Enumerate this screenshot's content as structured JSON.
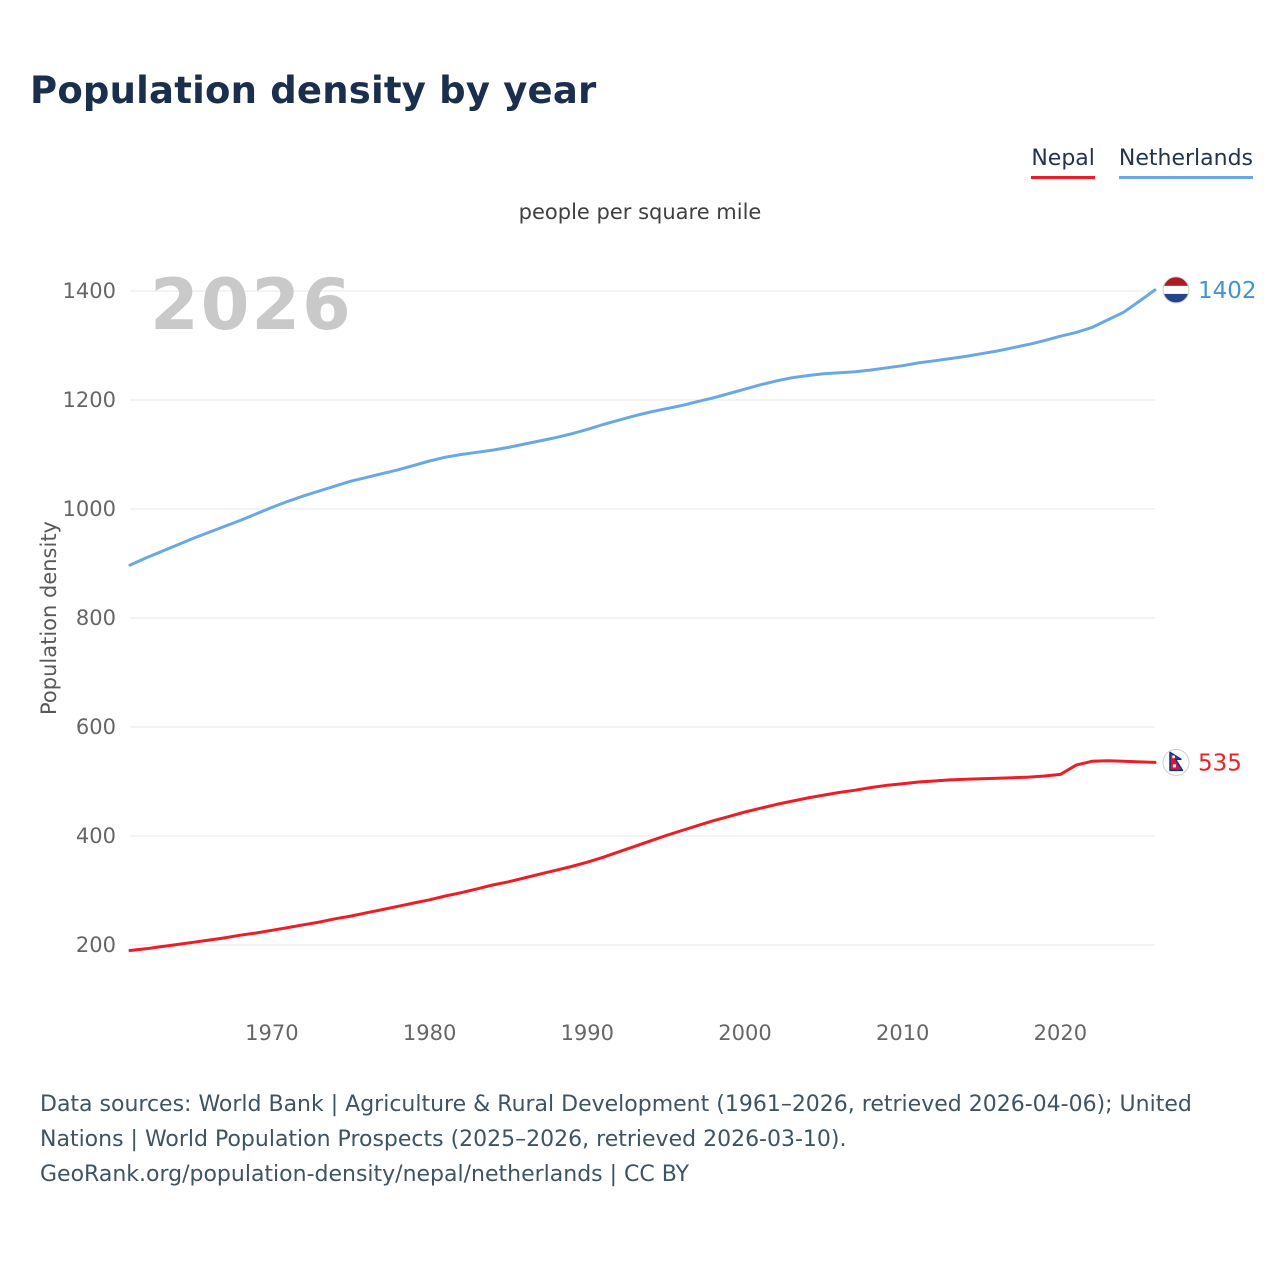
{
  "page": {
    "title": "Population density by year",
    "subtitle": "people per square mile",
    "watermark": "2026",
    "ylabel": "Population density"
  },
  "legend": {
    "items": [
      {
        "label": "Nepal",
        "color": "#ee1c25"
      },
      {
        "label": "Netherlands",
        "color": "#69a8e4"
      }
    ]
  },
  "footer": {
    "lines": [
      "Data sources: World Bank | Agriculture & Rural Development (1961–2026, retrieved 2026-04-06); United",
      "Nations | World Population Prospects (2025–2026, retrieved 2026-03-10).",
      "GeoRank.org/population-density/nepal/netherlands | CC BY"
    ]
  },
  "chart_data": {
    "type": "line",
    "title": "Population density by year",
    "units": "people per square mile",
    "xlabel": "",
    "ylabel": "Population density",
    "xlim": [
      1961,
      2026
    ],
    "xticks": [
      1970,
      1980,
      1990,
      2000,
      2010,
      2020
    ],
    "yticks": [
      200,
      400,
      600,
      800,
      1000,
      1200,
      1400
    ],
    "grid": "horizontal",
    "legend_position": "top-right",
    "x": [
      1961,
      1962,
      1963,
      1964,
      1965,
      1966,
      1967,
      1968,
      1969,
      1970,
      1971,
      1972,
      1973,
      1974,
      1975,
      1976,
      1977,
      1978,
      1979,
      1980,
      1981,
      1982,
      1983,
      1984,
      1985,
      1986,
      1987,
      1988,
      1989,
      1990,
      1991,
      1992,
      1993,
      1994,
      1995,
      1996,
      1997,
      1998,
      1999,
      2000,
      2001,
      2002,
      2003,
      2004,
      2005,
      2006,
      2007,
      2008,
      2009,
      2010,
      2011,
      2012,
      2013,
      2014,
      2015,
      2016,
      2017,
      2018,
      2019,
      2020,
      2021,
      2022,
      2023,
      2024,
      2025,
      2026
    ],
    "series": [
      {
        "name": "Nepal",
        "color": "#ee1c25",
        "label_color": "#e8232b",
        "flag": "nepal",
        "end_value": 535,
        "values": [
          190,
          193,
          197,
          201,
          205,
          209,
          213,
          218,
          222,
          227,
          232,
          237,
          242,
          248,
          253,
          259,
          265,
          271,
          277,
          283,
          290,
          296,
          303,
          310,
          316,
          323,
          330,
          337,
          344,
          352,
          361,
          371,
          381,
          391,
          401,
          410,
          419,
          428,
          436,
          444,
          451,
          458,
          464,
          470,
          475,
          480,
          484,
          489,
          493,
          496,
          499,
          501,
          503,
          504,
          505,
          506,
          507,
          508,
          510,
          513,
          530,
          537,
          538,
          537,
          536,
          535
        ]
      },
      {
        "name": "Netherlands",
        "color": "#69a8e4",
        "label_color": "#4292d6",
        "flag": "netherlands",
        "end_value": 1402,
        "values": [
          897,
          910,
          922,
          934,
          946,
          957,
          968,
          979,
          991,
          1003,
          1014,
          1024,
          1033,
          1042,
          1051,
          1058,
          1065,
          1072,
          1080,
          1088,
          1095,
          1100,
          1104,
          1108,
          1113,
          1119,
          1125,
          1131,
          1138,
          1146,
          1155,
          1163,
          1171,
          1178,
          1184,
          1190,
          1197,
          1204,
          1212,
          1220,
          1228,
          1235,
          1241,
          1245,
          1248,
          1250,
          1252,
          1255,
          1259,
          1263,
          1268,
          1272,
          1276,
          1280,
          1285,
          1290,
          1296,
          1302,
          1309,
          1317,
          1324,
          1333,
          1347,
          1361,
          1381,
          1402
        ]
      }
    ]
  }
}
